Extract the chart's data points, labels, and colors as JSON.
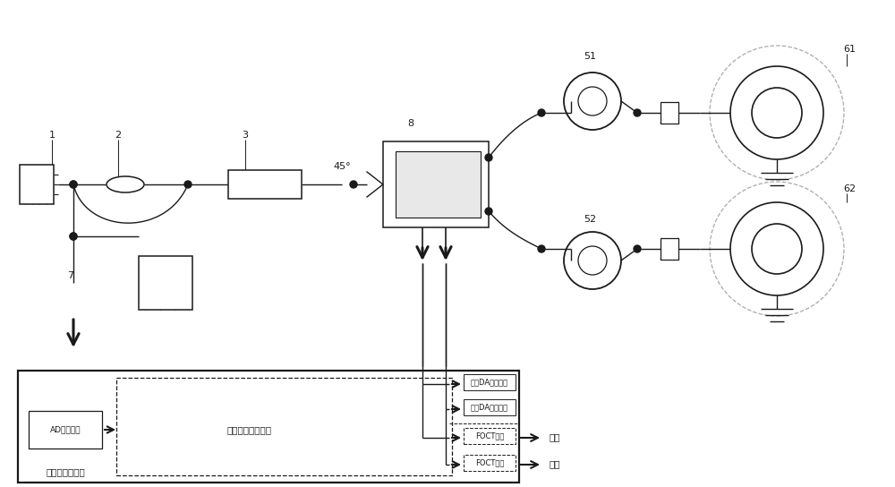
{
  "bg": "#ffffff",
  "lc": "#1a1a1a",
  "gray": "#aaaaaa",
  "figsize": [
    10.0,
    5.44
  ],
  "dpi": 100,
  "texts": {
    "lbl1": "1",
    "lbl2": "2",
    "lbl3": "3",
    "lbl7": "7",
    "lbl8": "8",
    "lbl51": "51",
    "lbl52": "52",
    "lbl61": "61",
    "lbl62": "62",
    "angle": "45°",
    "board": "信号处理电路板",
    "dsp": "数字信号处理单元",
    "ad": "AD转换电路",
    "da1": "第一DA转换电路",
    "da2": "第二DA转换电路",
    "foct1": "FOCT数据",
    "foct2": "FOCT数据",
    "out": "输出"
  }
}
